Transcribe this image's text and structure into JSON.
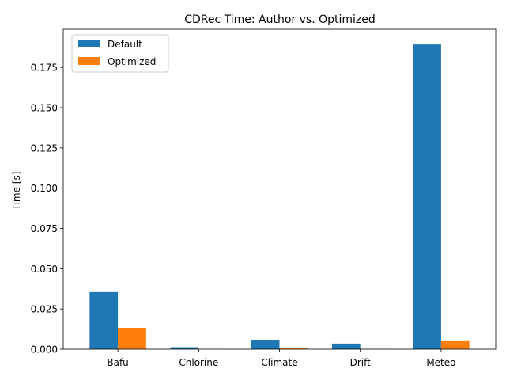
{
  "chart_data": {
    "type": "bar",
    "title": "CDRec Time: Author vs. Optimized",
    "xlabel": "",
    "ylabel": "Time [s]",
    "categories": [
      "Bafu",
      "Chlorine",
      "Climate",
      "Drift",
      "Meteo"
    ],
    "series": [
      {
        "name": "Default",
        "color": "#1f77b4",
        "values": [
          0.0355,
          0.0012,
          0.0055,
          0.0035,
          0.1893
        ]
      },
      {
        "name": "Optimized",
        "color": "#ff7f0e",
        "values": [
          0.0133,
          0.0001,
          0.0006,
          0.0002,
          0.005
        ]
      }
    ],
    "ylim": [
      0,
      0.1987
    ],
    "yticks": [
      "0.000",
      "0.025",
      "0.050",
      "0.075",
      "0.100",
      "0.125",
      "0.150",
      "0.175"
    ],
    "grid": false,
    "legend": "top-left"
  }
}
